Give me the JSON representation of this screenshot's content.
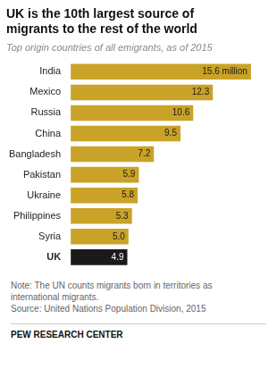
{
  "chart_data": {
    "type": "bar",
    "orientation": "horizontal",
    "title": "UK is the 10th largest source of\nmigrants to the rest of the world",
    "subtitle": "Top origin countries of all emigrants, as of 2015",
    "categories": [
      "India",
      "Mexico",
      "Russia",
      "China",
      "Bangladesh",
      "Pakistan",
      "Ukraine",
      "Philippines",
      "Syria",
      "UK"
    ],
    "values": [
      15.6,
      12.3,
      10.6,
      9.5,
      7.2,
      5.9,
      5.8,
      5.3,
      5.0,
      4.9
    ],
    "value_labels": [
      "15.6 million",
      "12.3",
      "10.6",
      "9.5",
      "7.2",
      "5.9",
      "5.8",
      "5.3",
      "5.0",
      "4.9"
    ],
    "colors": [
      "#C9A227",
      "#C9A227",
      "#C9A227",
      "#C9A227",
      "#C9A227",
      "#C9A227",
      "#C9A227",
      "#C9A227",
      "#C9A227",
      "#1a1a1a"
    ],
    "data_labels": true,
    "xlim": [
      0,
      17
    ],
    "tick_labels": "y",
    "grid": false,
    "annotations": [
      "Note: The UN counts migrants born in territories as",
      "international migrants.",
      "Source: United Nations Population Division, 2015",
      "PEW RESEARCH CENTER"
    ]
  }
}
